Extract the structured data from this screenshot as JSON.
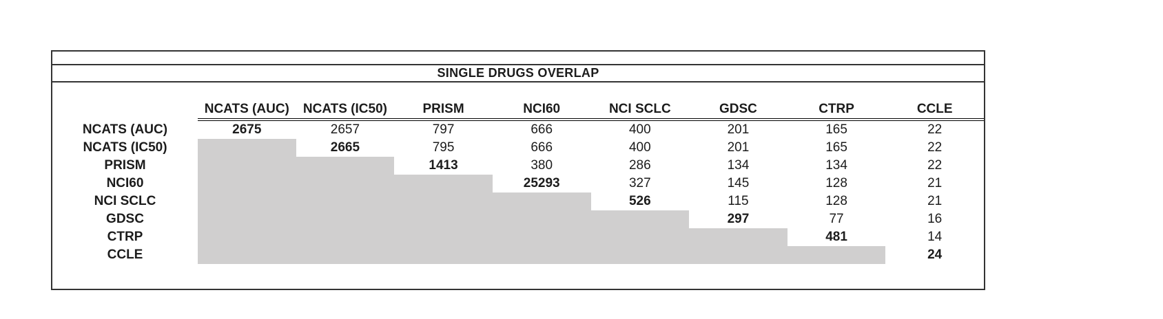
{
  "title": "SINGLE DRUGS OVERLAP",
  "colors": {
    "shaded_cell": "#d0cfcf",
    "border": "#333333",
    "header_underline": "#000000",
    "text": "#1c1c1c",
    "background": "#ffffff"
  },
  "chart_data": {
    "type": "table",
    "title": "SINGLE DRUGS OVERLAP",
    "row_labels": [
      "NCATS (AUC)",
      "NCATS (IC50)",
      "PRISM",
      "NCI60",
      "NCI SCLC",
      "GDSC",
      "CTRP",
      "CCLE"
    ],
    "col_labels": [
      "NCATS (AUC)",
      "NCATS (IC50)",
      "PRISM",
      "NCI60",
      "NCI SCLC",
      "GDSC",
      "CTRP",
      "CCLE"
    ],
    "matrix": [
      [
        2675,
        2657,
        797,
        666,
        400,
        201,
        165,
        22
      ],
      [
        null,
        2665,
        795,
        666,
        400,
        201,
        165,
        22
      ],
      [
        null,
        null,
        1413,
        380,
        286,
        134,
        134,
        22
      ],
      [
        null,
        null,
        null,
        25293,
        327,
        145,
        128,
        21
      ],
      [
        null,
        null,
        null,
        null,
        526,
        115,
        128,
        21
      ],
      [
        null,
        null,
        null,
        null,
        null,
        297,
        77,
        16
      ],
      [
        null,
        null,
        null,
        null,
        null,
        null,
        481,
        14
      ],
      [
        null,
        null,
        null,
        null,
        null,
        null,
        null,
        24
      ]
    ],
    "layout": {
      "diagonal_bold": true,
      "lower_triangle_shaded": true,
      "upper_triangle_only_values": true
    }
  }
}
